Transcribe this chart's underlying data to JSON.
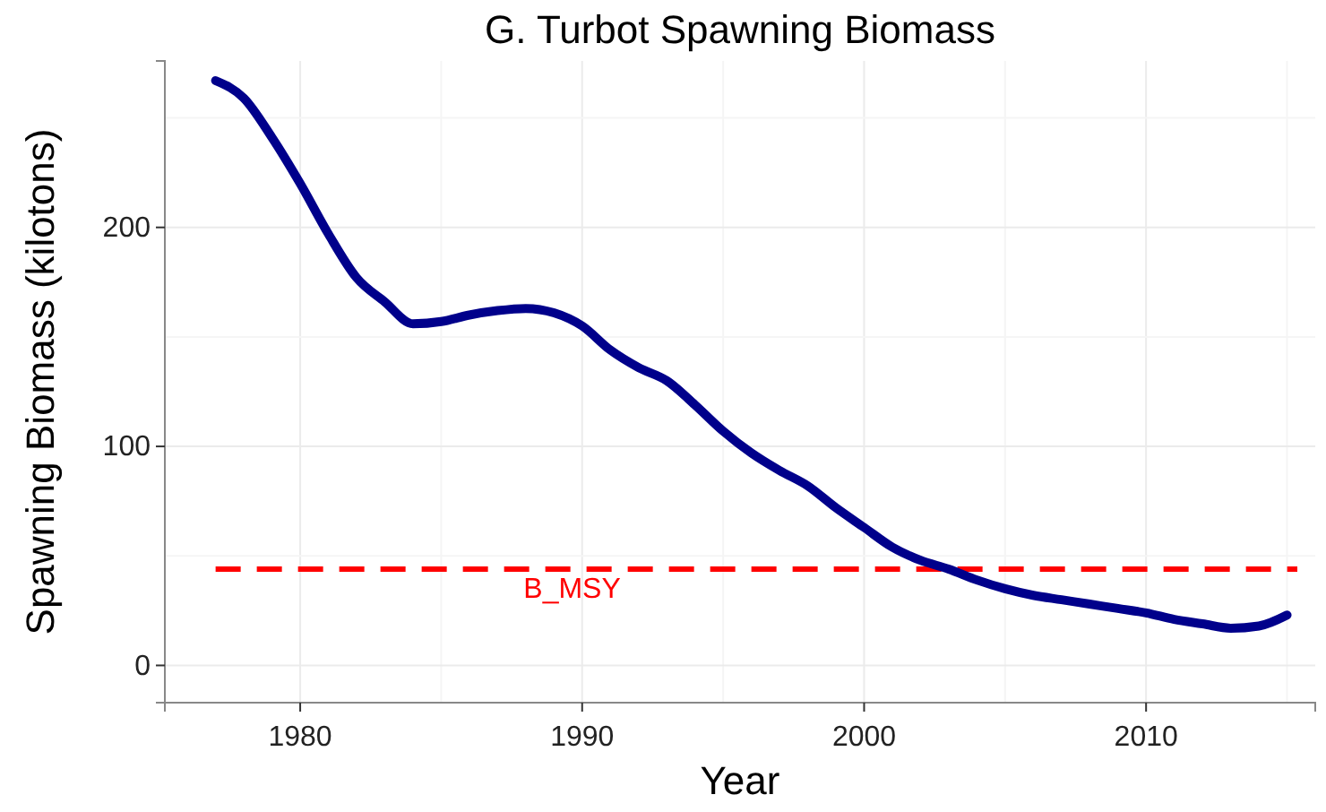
{
  "chart_data": {
    "type": "line",
    "title": "G. Turbot Spawning Biomass",
    "xlabel": "Year",
    "ylabel": "Spawning Biomass (kilotons)",
    "x": [
      1977,
      1978,
      1979,
      1980,
      1981,
      1982,
      1983,
      1984,
      1985,
      1986,
      1987,
      1988,
      1989,
      1990,
      1991,
      1992,
      1993,
      1994,
      1995,
      1996,
      1997,
      1998,
      1999,
      2000,
      2001,
      2002,
      2003,
      2004,
      2005,
      2006,
      2007,
      2008,
      2009,
      2010,
      2011,
      2012,
      2013,
      2014,
      2015
    ],
    "series": [
      {
        "color": "#00008b",
        "values": [
          267,
          259,
          241,
          220,
          197,
          177,
          166,
          156,
          157,
          160,
          162,
          163,
          161,
          155,
          144,
          136,
          130,
          119,
          107,
          97,
          89,
          82,
          72,
          63,
          54,
          48,
          44,
          39,
          35,
          32,
          30,
          28,
          26,
          24,
          21,
          19,
          17,
          18,
          23
        ]
      }
    ],
    "xlim": [
      1975.2,
      2016
    ],
    "ylim": [
      -17,
      276
    ],
    "xticks": [
      1980,
      1990,
      2000,
      2010
    ],
    "yticks": [
      0,
      100,
      200
    ],
    "grid": true,
    "ref_lines": [
      {
        "axis": "y",
        "value": 44,
        "label": "B_MSY",
        "color": "#ff0000",
        "line_style": "dashed"
      }
    ]
  }
}
